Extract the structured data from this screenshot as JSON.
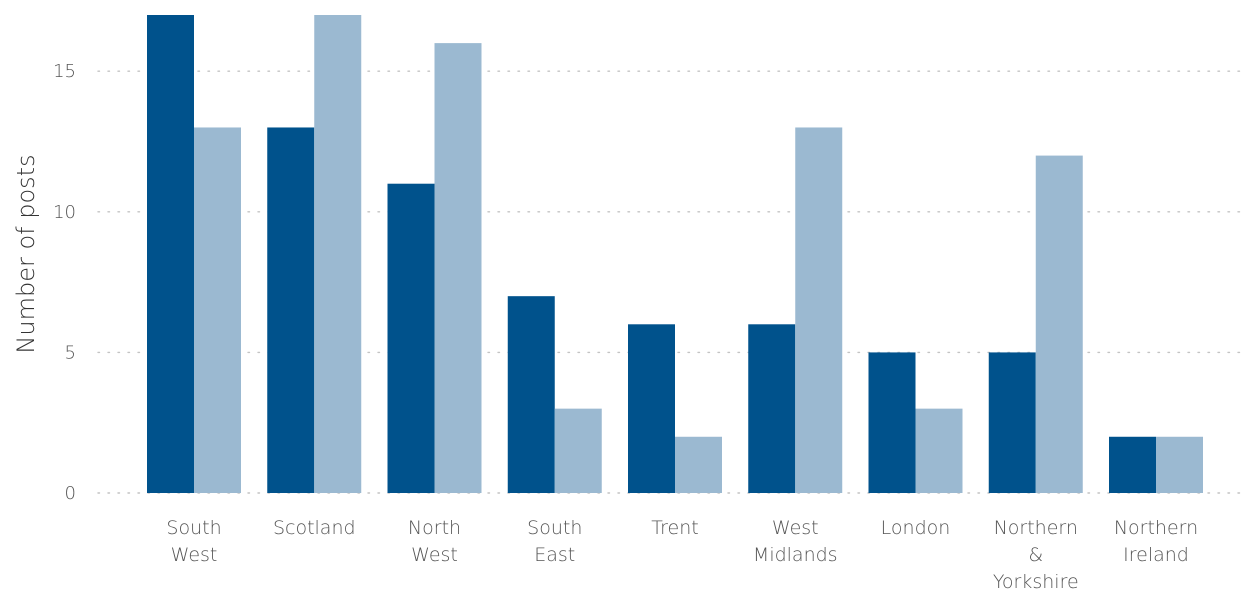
{
  "chart_data": {
    "type": "bar",
    "title": "",
    "xlabel": "",
    "ylabel": "Number of posts",
    "ylim": [
      0,
      17
    ],
    "yticks": [
      0,
      5,
      10,
      15
    ],
    "grid": true,
    "categories": [
      [
        "South",
        "West"
      ],
      [
        "Scotland"
      ],
      [
        "North",
        "West"
      ],
      [
        "South",
        "East"
      ],
      [
        "Trent"
      ],
      [
        "West",
        "Midlands"
      ],
      [
        "London"
      ],
      [
        "Northern",
        "&",
        "Yorkshire"
      ],
      [
        "Northern",
        "Ireland"
      ]
    ],
    "series": [
      {
        "values": [
          17,
          13,
          11,
          7,
          6,
          6,
          5,
          5,
          2
        ],
        "color": "#00528c"
      },
      {
        "values": [
          13,
          17,
          16,
          3,
          2,
          13,
          3,
          12,
          2
        ],
        "color": "#9bb9d1"
      }
    ]
  }
}
